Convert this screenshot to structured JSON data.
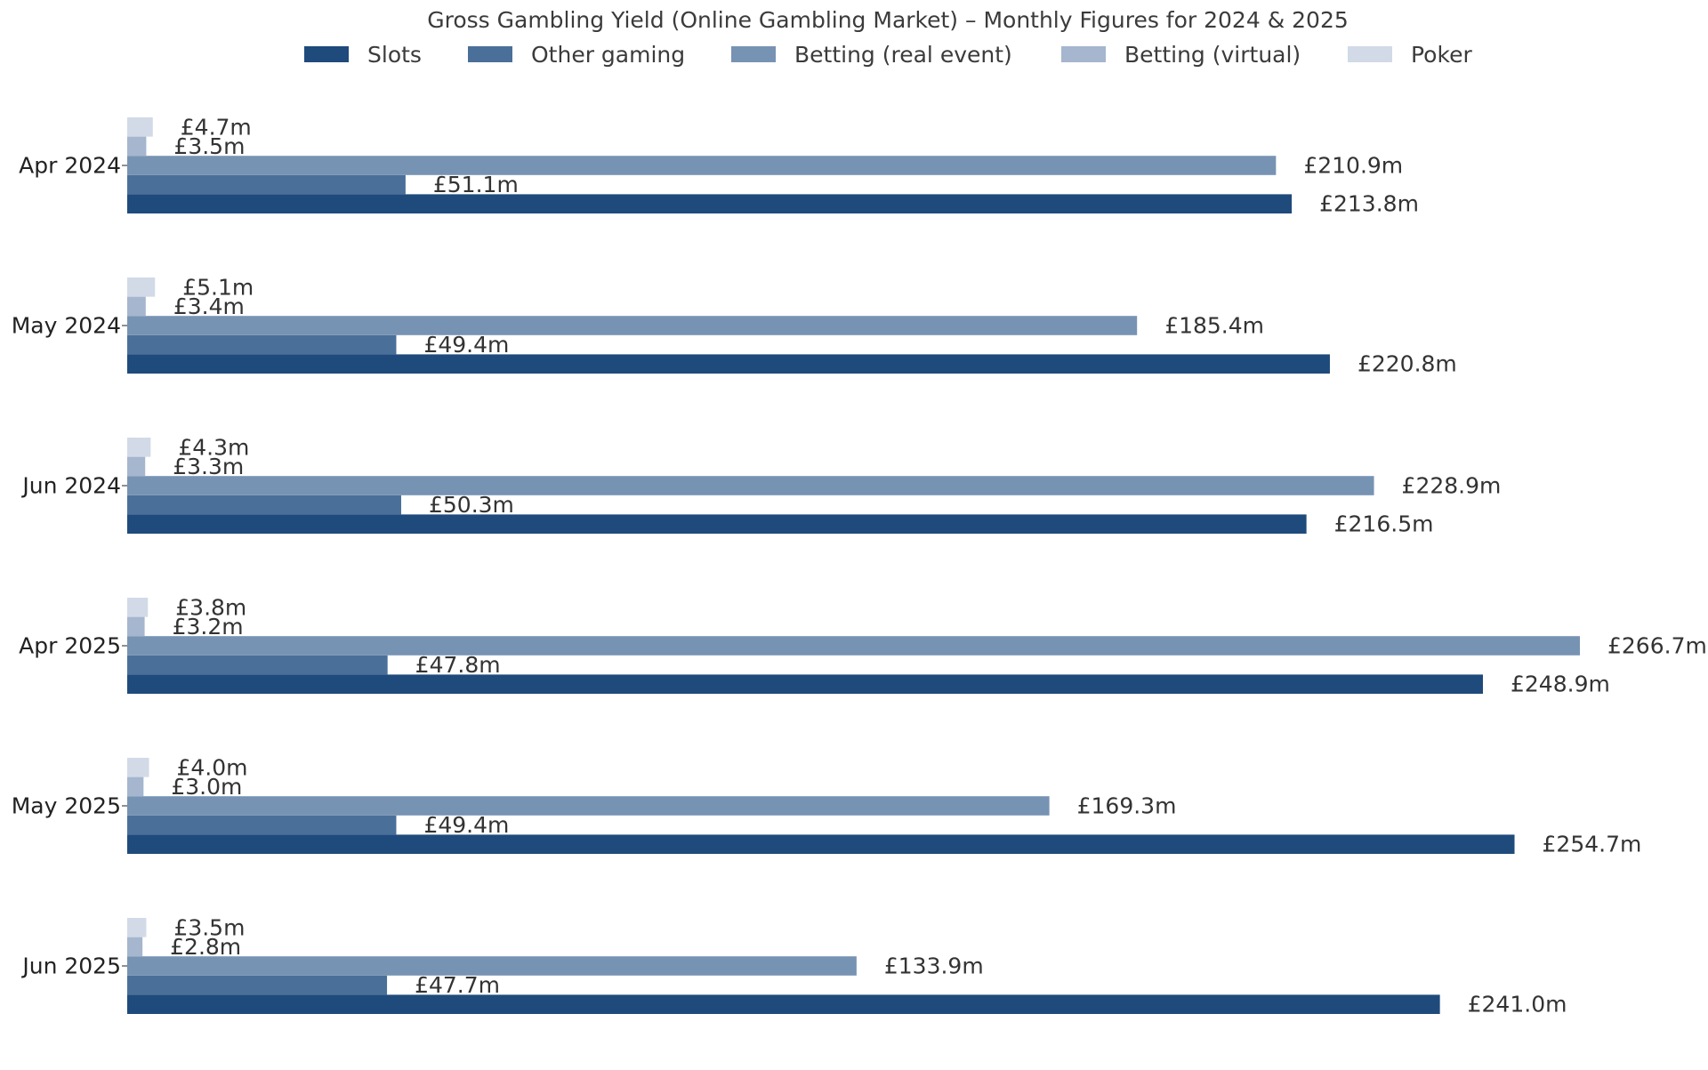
{
  "chart_data": {
    "type": "bar",
    "orientation": "horizontal",
    "title": "Gross Gambling Yield (Online Gambling Market) – Monthly Figures for 2024 & 2025",
    "xlabel": "",
    "ylabel": "",
    "xlim": [
      0,
      266.7
    ],
    "grid": false,
    "legend_position": "top-center",
    "categories": [
      "Apr 2024",
      "May 2024",
      "Jun 2024",
      "Apr 2025",
      "May 2025",
      "Jun 2025"
    ],
    "series": [
      {
        "name": "Slots",
        "color": "#1f4a7c",
        "values": [
          213.8,
          220.8,
          216.5,
          248.9,
          254.7,
          241.0
        ],
        "labels": [
          "£213.8m",
          "£220.8m",
          "£216.5m",
          "£248.9m",
          "£254.7m",
          "£241.0m"
        ]
      },
      {
        "name": "Other gaming",
        "color": "#4a6f99",
        "values": [
          51.1,
          49.4,
          50.3,
          47.8,
          49.4,
          47.7
        ],
        "labels": [
          "£51.1m",
          "£49.4m",
          "£50.3m",
          "£47.8m",
          "£49.4m",
          "£47.7m"
        ]
      },
      {
        "name": "Betting (real event)",
        "color": "#7793b3",
        "values": [
          210.9,
          185.4,
          228.9,
          266.7,
          169.3,
          133.9
        ],
        "labels": [
          "£210.9m",
          "£185.4m",
          "£228.9m",
          "£266.7m",
          "£169.3m",
          "£133.9m"
        ]
      },
      {
        "name": "Betting (virtual)",
        "color": "#a5b6ce",
        "values": [
          3.5,
          3.4,
          3.3,
          3.2,
          3.0,
          2.8
        ],
        "labels": [
          "£3.5m",
          "£3.4m",
          "£3.3m",
          "£3.2m",
          "£3.0m",
          "£2.8m"
        ]
      },
      {
        "name": "Poker",
        "color": "#d1dae6",
        "values": [
          4.7,
          5.1,
          4.3,
          3.8,
          4.0,
          3.5
        ],
        "labels": [
          "£4.7m",
          "£5.1m",
          "£4.3m",
          "£3.8m",
          "£4.0m",
          "£3.5m"
        ]
      }
    ]
  }
}
